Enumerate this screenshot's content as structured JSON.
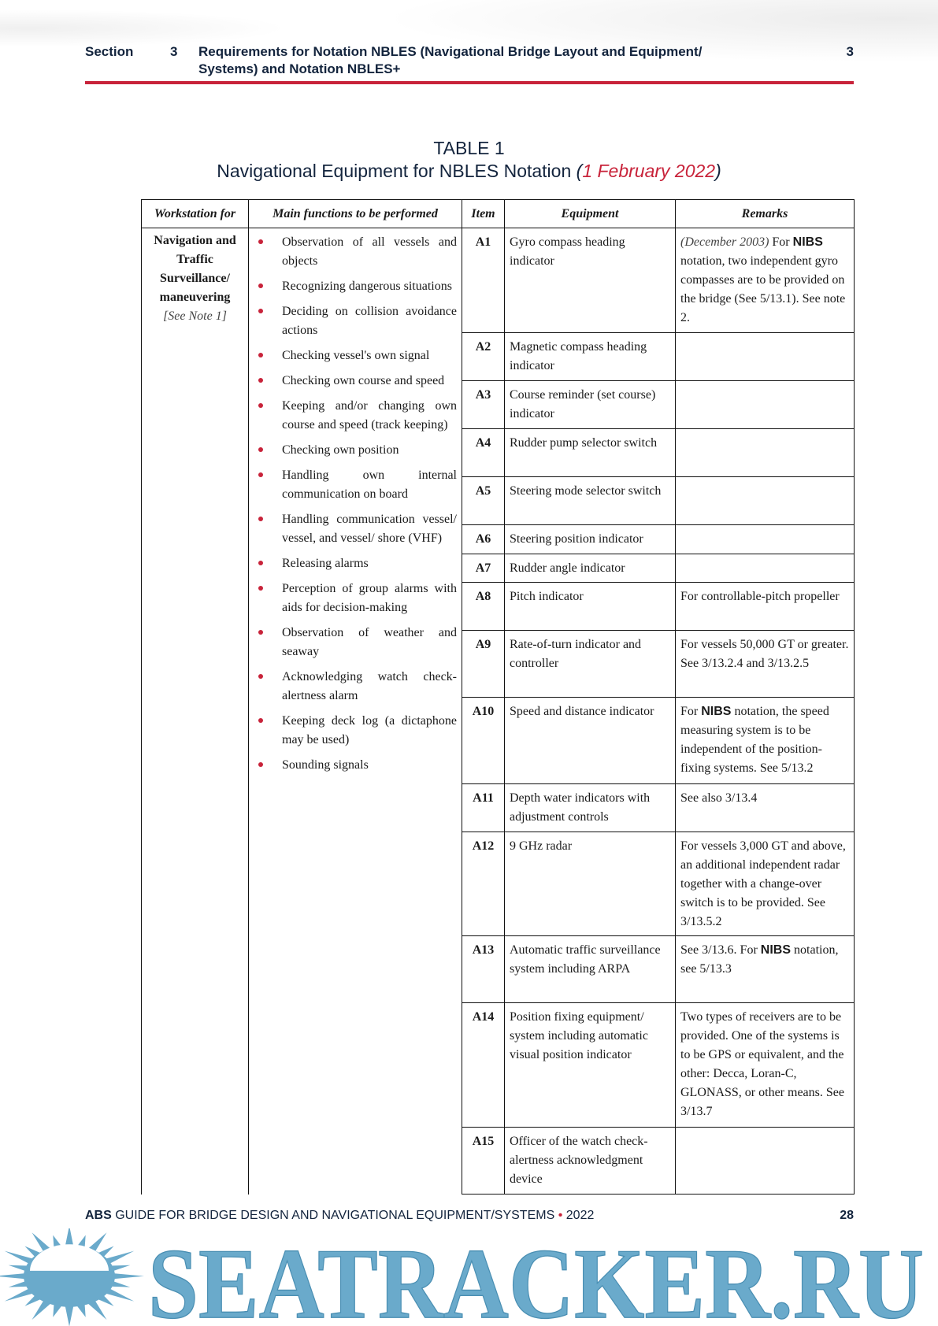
{
  "header": {
    "section_label": "Section",
    "section_number": "3",
    "title": "Requirements for Notation NBLES (Navigational Bridge Layout and Equipment/ Systems) and Notation NBLES+",
    "page_section": "3",
    "accent_color": "#c8233a"
  },
  "caption": {
    "table_label": "TABLE 1",
    "title": "Navigational Equipment for NBLES Notation",
    "date": "1 February 2022"
  },
  "table": {
    "columns": [
      "Workstation for",
      "Main functions to be performed",
      "Item",
      "Equipment",
      "Remarks"
    ],
    "workstation": {
      "name": "Navigation and Traffic Surveillance/ maneuvering",
      "note": "[See Note 1]"
    },
    "functions": [
      "Observation of all vessels and objects",
      "Recognizing dangerous situations",
      "Deciding on collision avoidance actions",
      "Checking vessel's own signal",
      "Checking own course and speed",
      "Keeping and/or changing own course and speed (track keeping)",
      "Checking own position",
      "Handling own internal communication on board",
      "Handling communication vessel/ vessel, and vessel/ shore (VHF)",
      "Releasing alarms",
      "Perception of group alarms with aids for decision-making",
      "Observation of weather and seaway",
      "Acknowledging watch check-alertness alarm",
      "Keeping deck log (a dictaphone may be used)",
      "Sounding signals"
    ],
    "rows": [
      {
        "item": "A1",
        "equipment": "Gyro compass heading indicator",
        "remarks": [
          {
            "t": "(December 2003)",
            "s": "i"
          },
          {
            "t": " For ",
            "s": ""
          },
          {
            "t": "NIBS",
            "s": "b"
          },
          {
            "t": " notation, two independent gyro compasses are to be provided on the bridge (See 5/13.1). See note 2.",
            "s": ""
          }
        ]
      },
      {
        "item": "A2",
        "equipment": "Magnetic compass heading indicator",
        "remarks": []
      },
      {
        "item": "A3",
        "equipment": "Course reminder (set course) indicator",
        "remarks": []
      },
      {
        "item": "A4",
        "equipment": "Rudder pump selector switch",
        "remarks": []
      },
      {
        "item": "A5",
        "equipment": "Steering mode selector switch",
        "remarks": []
      },
      {
        "item": "A6",
        "equipment": "Steering position indicator",
        "remarks": []
      },
      {
        "item": "A7",
        "equipment": "Rudder angle indicator",
        "remarks": []
      },
      {
        "item": "A8",
        "equipment": "Pitch indicator",
        "remarks": [
          {
            "t": "For controllable-pitch propeller",
            "s": ""
          }
        ]
      },
      {
        "item": "A9",
        "equipment": "Rate-of-turn indicator and controller",
        "remarks": [
          {
            "t": "For vessels 50,000 GT or greater. See 3/13.2.4 and 3/13.2.5",
            "s": ""
          }
        ]
      },
      {
        "item": "A10",
        "equipment": "Speed and distance indicator",
        "remarks": [
          {
            "t": "For ",
            "s": ""
          },
          {
            "t": "NIBS",
            "s": "b"
          },
          {
            "t": " notation, the speed measuring system is to be independent of the position-fixing systems. See 5/13.2",
            "s": ""
          }
        ]
      },
      {
        "item": "A11",
        "equipment": "Depth water indicators with adjustment controls",
        "remarks": [
          {
            "t": "See also 3/13.4",
            "s": ""
          }
        ]
      },
      {
        "item": "A12",
        "equipment": "9 GHz radar",
        "remarks": [
          {
            "t": "For vessels 3,000 GT and above, an additional independent radar together with a change-over switch is to be provided. See 3/13.5.2",
            "s": ""
          }
        ]
      },
      {
        "item": "A13",
        "equipment": "Automatic traffic surveillance system including ARPA",
        "remarks": [
          {
            "t": "See 3/13.6. For ",
            "s": ""
          },
          {
            "t": "NIBS",
            "s": "b"
          },
          {
            "t": " notation, see 5/13.3",
            "s": ""
          }
        ]
      },
      {
        "item": "A14",
        "equipment": "Position fixing equipment/ system including automatic visual position indicator",
        "remarks": [
          {
            "t": "Two types of receivers are to be provided. One of the systems is to be GPS or equivalent, and the other: Decca, Loran-C, GLONASS, or other means. See 3/13.7",
            "s": ""
          }
        ]
      },
      {
        "item": "A15",
        "equipment": "Officer of the watch check-alertness acknowledgment device",
        "remarks": []
      }
    ]
  },
  "footer": {
    "brand": "ABS",
    "title": "GUIDE FOR BRIDGE DESIGN AND NAVIGATIONAL EQUIPMENT/SYSTEMS",
    "separator": "•",
    "year": "2022",
    "page": "28"
  },
  "watermark": {
    "text": "SEATRACKER.RU",
    "color": "#6aaacb",
    "icon": "sun-icon"
  }
}
